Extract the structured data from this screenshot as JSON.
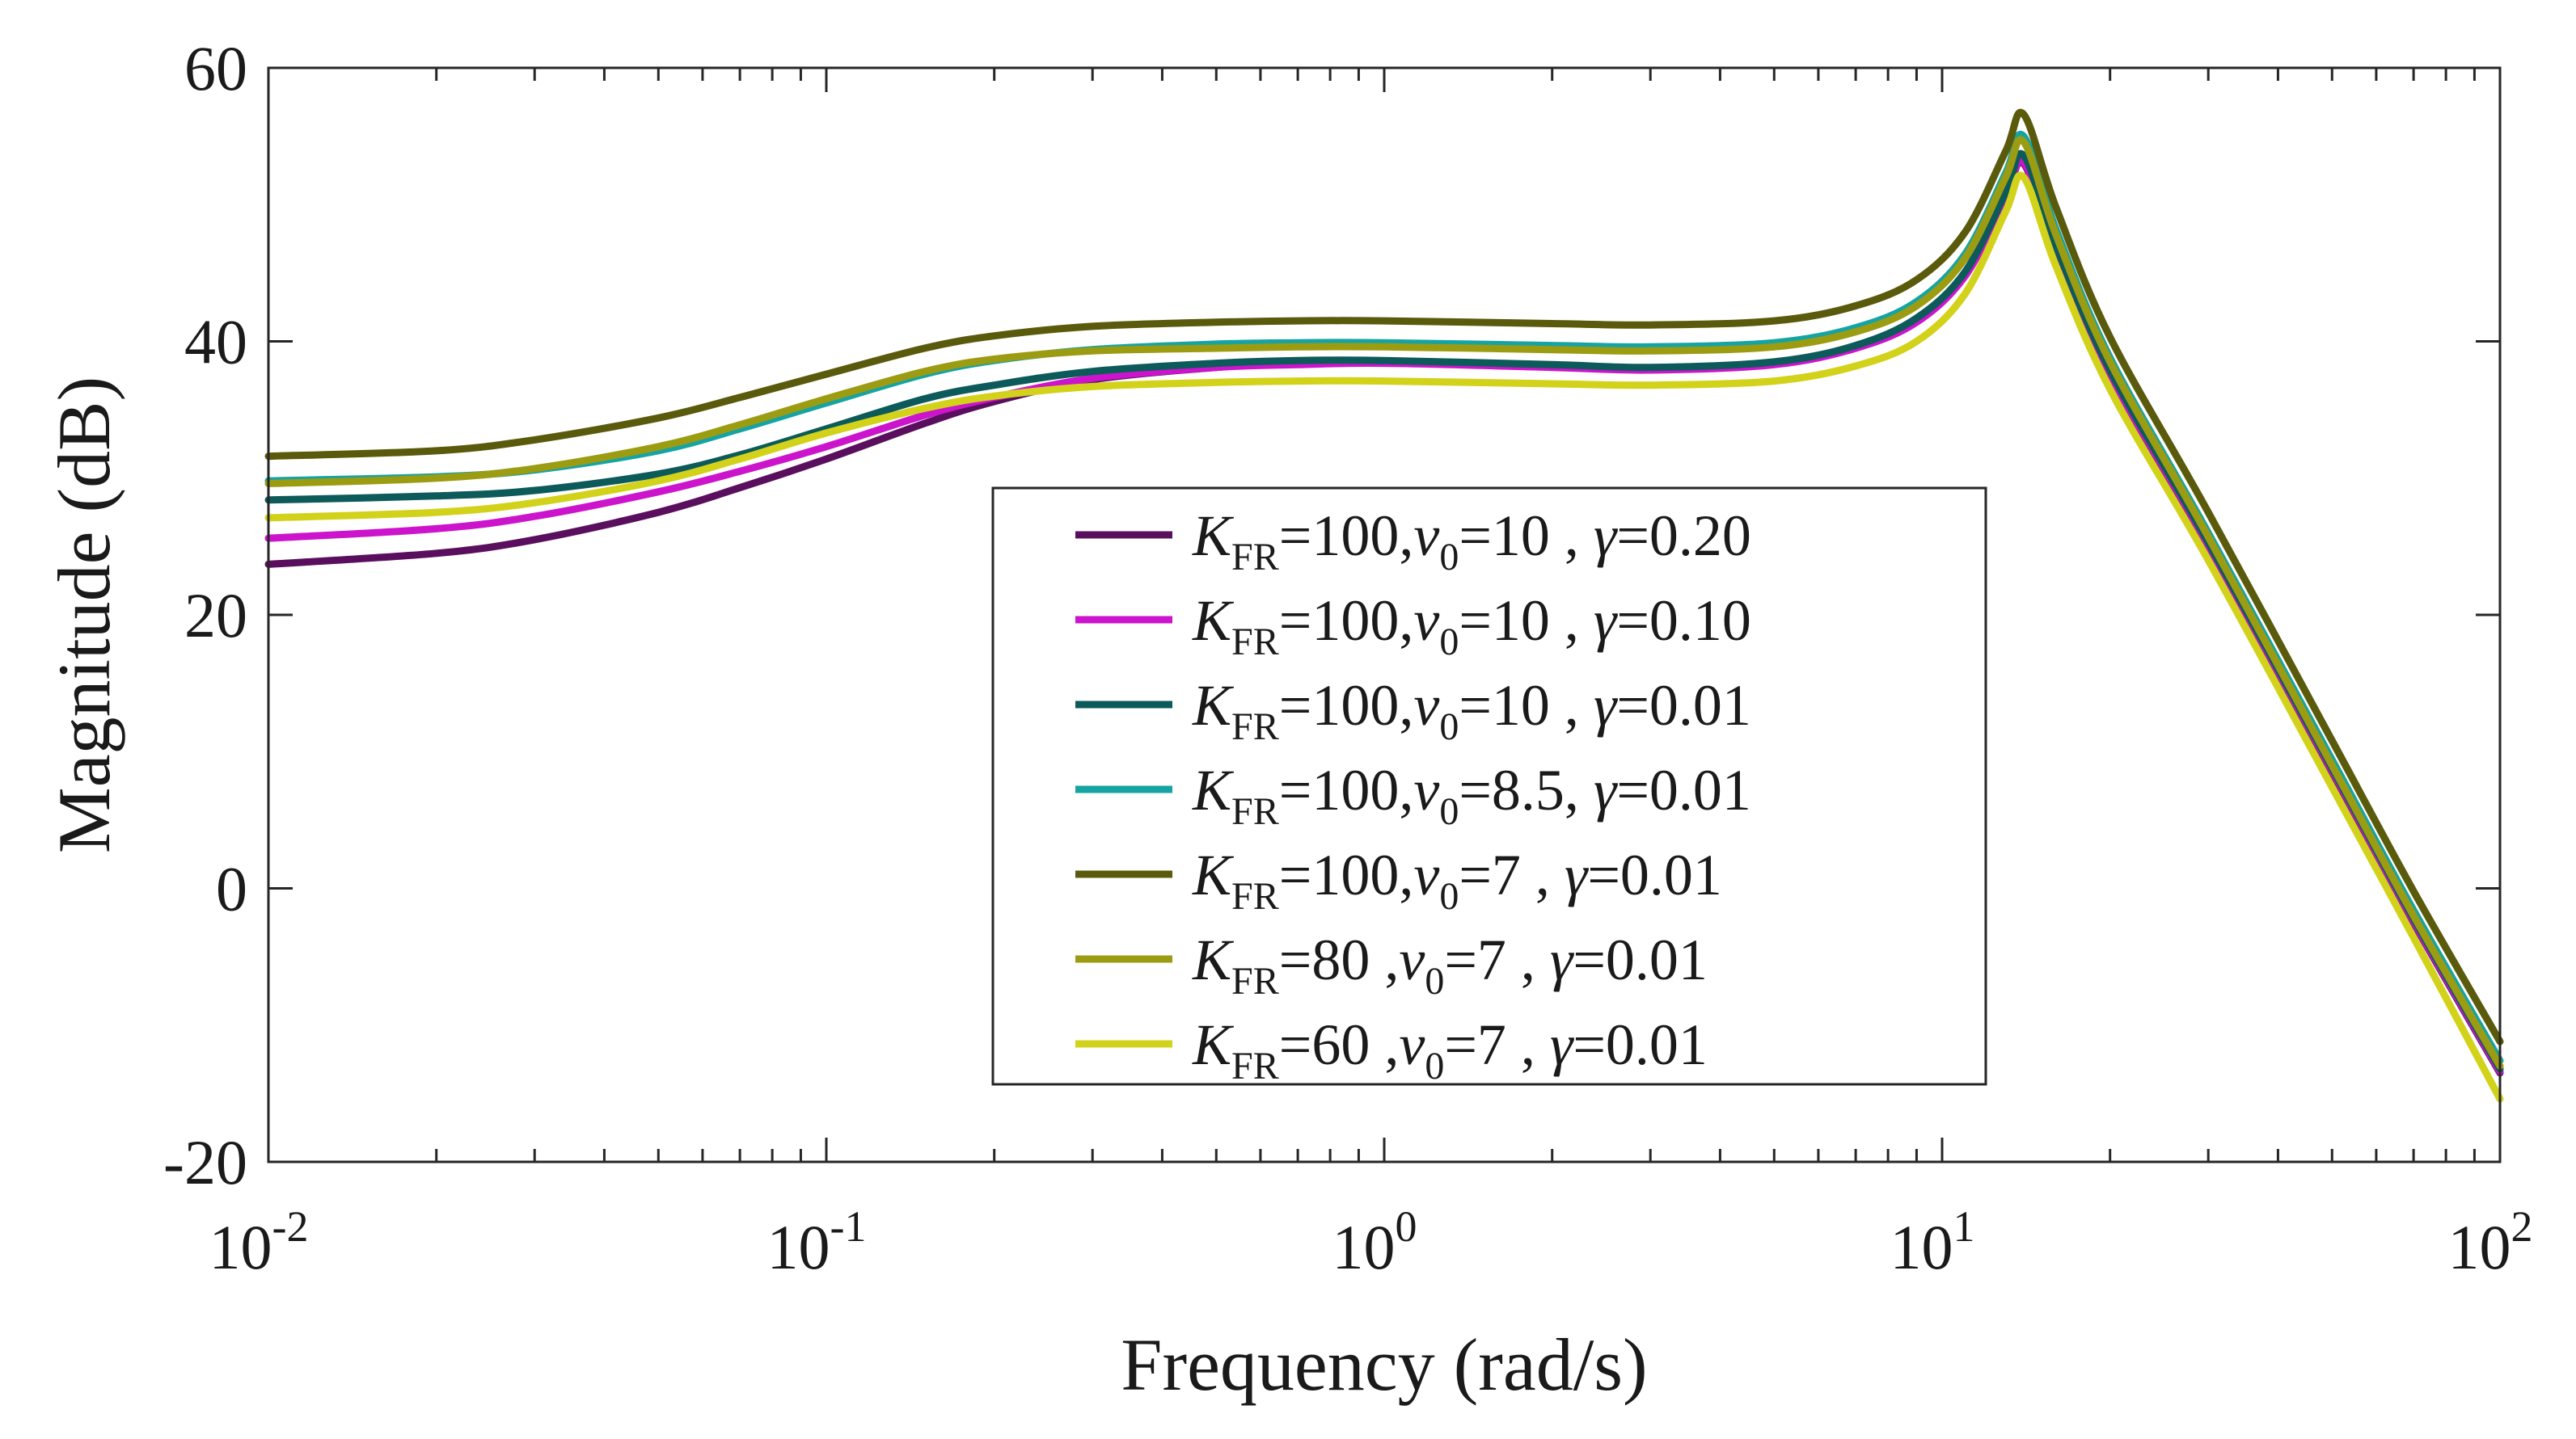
{
  "chart_data": {
    "type": "line",
    "xlabel": "Frequency (rad/s)",
    "ylabel": "Magnitude (dB)",
    "xscale": "log",
    "xlim": [
      0.01,
      100
    ],
    "ylim": [
      -20,
      60
    ],
    "grid": false,
    "legend_position": "center",
    "x_ticks": [
      {
        "base": "10",
        "exp": "-2",
        "value": 0.01
      },
      {
        "base": "10",
        "exp": "-1",
        "value": 0.1
      },
      {
        "base": "10",
        "exp": "0",
        "value": 1
      },
      {
        "base": "10",
        "exp": "1",
        "value": 10
      },
      {
        "base": "10",
        "exp": "2",
        "value": 100
      }
    ],
    "y_ticks": [
      {
        "label": "-20",
        "value": -20
      },
      {
        "label": "0",
        "value": 0
      },
      {
        "label": "20",
        "value": 20
      },
      {
        "label": "40",
        "value": 40
      },
      {
        "label": "60",
        "value": 60
      }
    ],
    "x": [
      0.01,
      0.02,
      0.03,
      0.05,
      0.07,
      0.1,
      0.15,
      0.2,
      0.3,
      0.5,
      0.7,
      1,
      2,
      3,
      5,
      7,
      9,
      11,
      13,
      14,
      16,
      20,
      30,
      50,
      70,
      100
    ],
    "series": [
      {
        "color": "#5a0f5e",
        "values": [
          23.7,
          24.5,
          25.5,
          27.5,
          29.3,
          31.4,
          34.0,
          35.6,
          37.2,
          38.1,
          38.4,
          38.5,
          38.2,
          38.0,
          38.4,
          39.6,
          41.5,
          44.8,
          50.5,
          53.0,
          46.5,
          37.5,
          25.0,
          8.5,
          -2.5,
          -13.5
        ]
      },
      {
        "color": "#cc14cc",
        "values": [
          25.6,
          26.3,
          27.2,
          29.0,
          30.5,
          32.3,
          34.6,
          35.9,
          37.3,
          38.1,
          38.3,
          38.4,
          38.1,
          37.9,
          38.3,
          39.5,
          41.4,
          44.8,
          50.5,
          53.1,
          46.6,
          37.6,
          25.1,
          8.6,
          -2.4,
          -13.4
        ]
      },
      {
        "color": "#0c5a5a",
        "values": [
          28.4,
          28.7,
          29.1,
          30.3,
          31.7,
          33.6,
          35.8,
          36.8,
          37.8,
          38.4,
          38.6,
          38.6,
          38.3,
          38.1,
          38.5,
          39.7,
          41.7,
          45.1,
          50.9,
          53.6,
          47.0,
          37.9,
          25.3,
          8.8,
          -2.2,
          -13.2
        ]
      },
      {
        "color": "#16a3a3",
        "values": [
          29.8,
          30.1,
          30.6,
          32.0,
          33.6,
          35.5,
          37.6,
          38.6,
          39.4,
          39.8,
          39.9,
          39.9,
          39.7,
          39.6,
          39.9,
          41.0,
          42.9,
          46.4,
          52.3,
          55.0,
          48.2,
          38.8,
          26.0,
          9.4,
          -1.6,
          -12.6
        ]
      },
      {
        "color": "#5a5a0c",
        "values": [
          31.6,
          32.0,
          32.8,
          34.4,
          35.9,
          37.6,
          39.5,
          40.4,
          41.1,
          41.4,
          41.5,
          41.5,
          41.3,
          41.2,
          41.5,
          42.6,
          44.5,
          48.0,
          53.9,
          56.6,
          49.8,
          40.3,
          27.5,
          10.8,
          -0.2,
          -11.2
        ]
      },
      {
        "color": "#9c9c12",
        "values": [
          29.6,
          30.0,
          30.7,
          32.3,
          33.9,
          35.8,
          37.8,
          38.7,
          39.3,
          39.5,
          39.6,
          39.6,
          39.4,
          39.3,
          39.6,
          40.7,
          42.6,
          46.1,
          52.0,
          54.6,
          47.8,
          38.5,
          25.7,
          9.0,
          -2.0,
          -13.0
        ]
      },
      {
        "color": "#d2d21a",
        "values": [
          27.1,
          27.5,
          28.2,
          29.8,
          31.4,
          33.3,
          35.1,
          36.0,
          36.7,
          37.0,
          37.1,
          37.1,
          36.9,
          36.8,
          37.1,
          38.2,
          40.0,
          43.5,
          49.5,
          52.0,
          45.5,
          36.5,
          24.0,
          7.4,
          -3.6,
          -15.4
        ]
      }
    ],
    "legend": [
      {
        "k": "K",
        "k_sub": "FR",
        "k_val": "=100,",
        "v": "v",
        "v_sub": "0",
        "v_val": "=10  , ",
        "g": "γ",
        "g_val": "=0.20"
      },
      {
        "k": "K",
        "k_sub": "FR",
        "k_val": "=100,",
        "v": "v",
        "v_sub": "0",
        "v_val": "=10  , ",
        "g": "γ",
        "g_val": "=0.10"
      },
      {
        "k": "K",
        "k_sub": "FR",
        "k_val": "=100,",
        "v": "v",
        "v_sub": "0",
        "v_val": "=10  , ",
        "g": "γ",
        "g_val": "=0.01"
      },
      {
        "k": "K",
        "k_sub": "FR",
        "k_val": "=100,",
        "v": "v",
        "v_sub": "0",
        "v_val": "=8.5, ",
        "g": "γ",
        "g_val": "=0.01"
      },
      {
        "k": "K",
        "k_sub": "FR",
        "k_val": "=100,",
        "v": "v",
        "v_sub": "0",
        "v_val": "=7    , ",
        "g": "γ",
        "g_val": "=0.01"
      },
      {
        "k": "K",
        "k_sub": "FR",
        "k_val": "=80   ,",
        "v": "v",
        "v_sub": "0",
        "v_val": "=7    , ",
        "g": "γ",
        "g_val": "=0.01"
      },
      {
        "k": "K",
        "k_sub": "FR",
        "k_val": "=60   ,",
        "v": "v",
        "v_sub": "0",
        "v_val": "=7    , ",
        "g": "γ",
        "g_val": "=0.01"
      }
    ]
  }
}
